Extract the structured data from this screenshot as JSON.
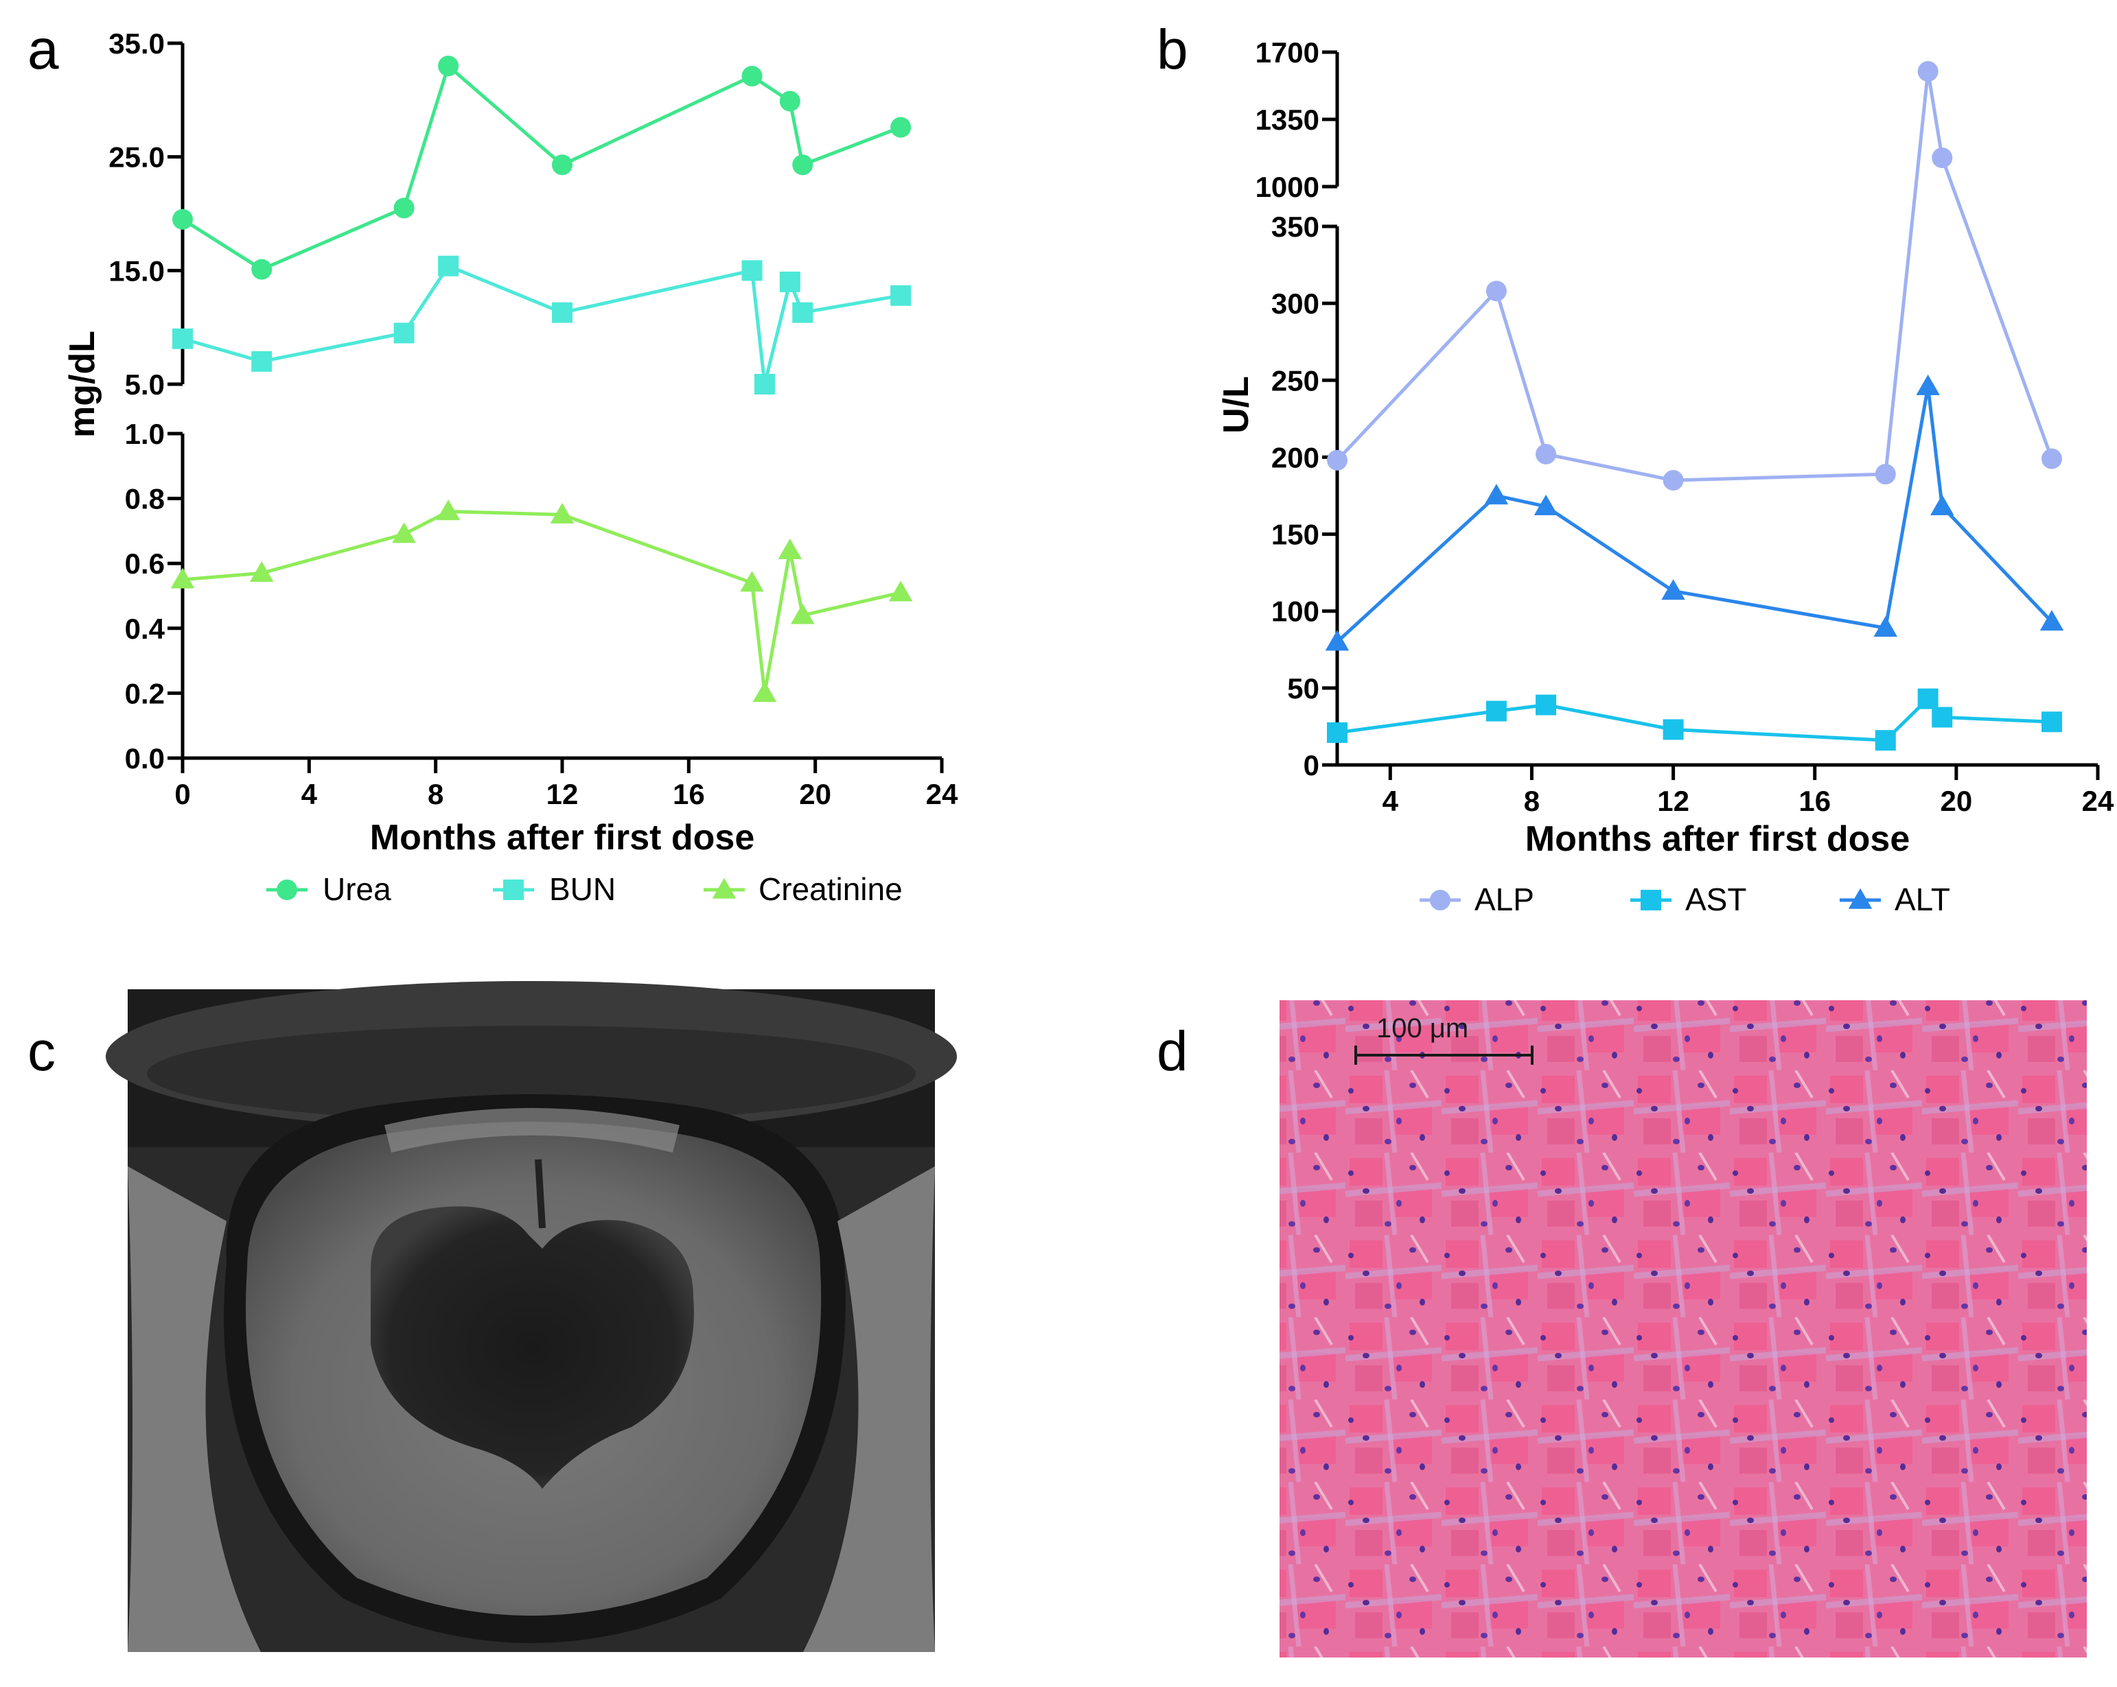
{
  "panels": {
    "a": {
      "letter": "a"
    },
    "b": {
      "letter": "b"
    },
    "c": {
      "letter": "c"
    },
    "d": {
      "letter": "d",
      "scale_bar_label": "100 μm"
    }
  },
  "colors": {
    "urea": "#3ee68c",
    "bun": "#4de8d8",
    "creatinine": "#8fec5a",
    "alp": "#9fb1f2",
    "ast": "#19c2ea",
    "alt": "#2a86ea",
    "axis": "#000000"
  },
  "chart_data": [
    {
      "id": "a",
      "type": "line",
      "title": "",
      "xlabel": "Months after first dose",
      "ylabel": "mg/dL",
      "xlim": [
        0,
        24
      ],
      "x_ticks": [
        0,
        4,
        8,
        12,
        16,
        20,
        24
      ],
      "y_segments": [
        {
          "range": [
            5,
            35
          ],
          "ticks": [
            "5.0",
            "15.0",
            "25.0",
            "35.0"
          ]
        },
        {
          "range": [
            0,
            1
          ],
          "ticks": [
            "0.0",
            "0.2",
            "0.4",
            "0.6",
            "0.8",
            "1.0"
          ]
        }
      ],
      "legend_position": "bottom",
      "series": [
        {
          "name": "Urea",
          "marker": "circle",
          "segment": 0,
          "x": [
            0,
            2.5,
            7,
            8.4,
            12,
            18,
            19.2,
            19.6,
            22.7
          ],
          "values": [
            19.5,
            15.1,
            20.5,
            33.0,
            24.3,
            32.1,
            29.9,
            24.3,
            27.6
          ]
        },
        {
          "name": "BUN",
          "marker": "square",
          "segment": 0,
          "x": [
            0,
            2.5,
            7,
            8.4,
            12,
            18,
            18.4,
            19.2,
            19.6,
            22.7
          ],
          "values": [
            9.0,
            7.0,
            9.5,
            15.4,
            11.3,
            15.0,
            5.0,
            14.0,
            11.3,
            12.8
          ]
        },
        {
          "name": "Creatinine",
          "marker": "triangle",
          "segment": 1,
          "x": [
            0,
            2.5,
            7,
            8.4,
            12,
            18,
            18.4,
            19.2,
            19.6,
            22.7
          ],
          "values": [
            0.55,
            0.57,
            0.69,
            0.76,
            0.75,
            0.54,
            0.2,
            0.64,
            0.44,
            0.51
          ]
        }
      ]
    },
    {
      "id": "b",
      "type": "line",
      "title": "",
      "xlabel": "Months after first dose",
      "ylabel": "U/L",
      "xlim": [
        2.5,
        24
      ],
      "x_ticks": [
        4,
        8,
        12,
        16,
        20,
        24
      ],
      "y_segments": [
        {
          "range": [
            0,
            350
          ],
          "ticks": [
            "0",
            "50",
            "100",
            "150",
            "200",
            "250",
            "300",
            "350"
          ]
        },
        {
          "range": [
            1000,
            1700
          ],
          "ticks": [
            "1000",
            "1350",
            "1700"
          ]
        }
      ],
      "legend_position": "bottom",
      "series": [
        {
          "name": "ALP",
          "marker": "circle",
          "x": [
            2.5,
            7,
            8.4,
            12,
            18,
            19.2,
            19.6,
            22.7
          ],
          "values": [
            198,
            308,
            202,
            185,
            189,
            1600,
            1150,
            199
          ]
        },
        {
          "name": "AST",
          "marker": "square",
          "x": [
            2.5,
            7,
            8.4,
            12,
            18,
            19.2,
            19.6,
            22.7
          ],
          "values": [
            21,
            35,
            39,
            23,
            16,
            43,
            31,
            28
          ]
        },
        {
          "name": "ALT",
          "marker": "triangle",
          "x": [
            2.5,
            7,
            8.4,
            12,
            18,
            19.2,
            19.6,
            22.7
          ],
          "values": [
            80,
            175,
            168,
            113,
            89,
            246,
            168,
            93
          ]
        }
      ]
    }
  ]
}
